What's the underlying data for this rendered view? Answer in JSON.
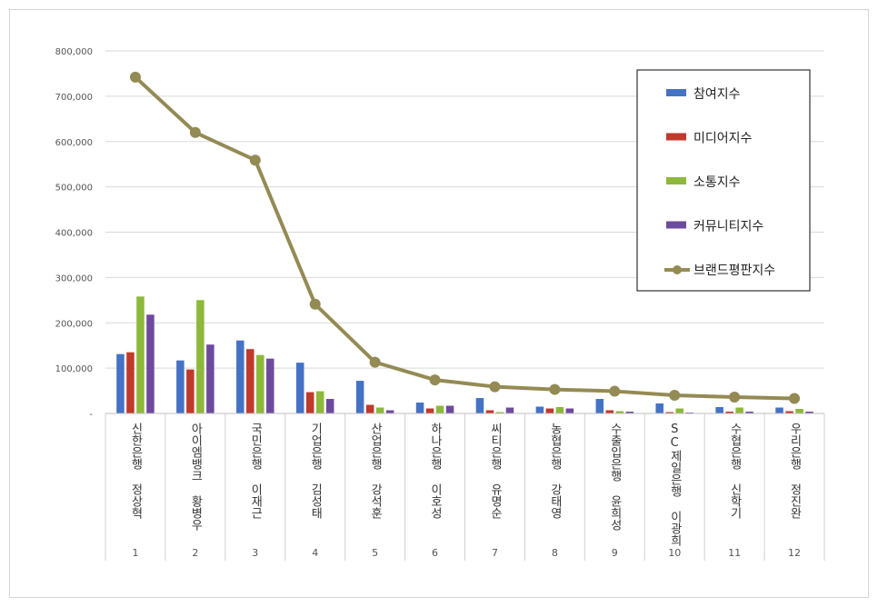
{
  "chart_data": {
    "type": "bar",
    "categories": [
      "1",
      "2",
      "3",
      "4",
      "5",
      "6",
      "7",
      "8",
      "9",
      "10",
      "11",
      "12"
    ],
    "category_labels": [
      "신한은행 정상혁",
      "아이엠뱅크 황병우",
      "국민은행 이재근",
      "기업은행 김성태",
      "산업은행 강석훈",
      "하나은행 이호성",
      "씨티은행 유명순",
      "농협은행 강태영",
      "수출입은행 윤희성",
      "SC제일은행 이광희",
      "수협은행 신학기",
      "우리은행 정진완"
    ],
    "ylim": [
      0,
      800000
    ],
    "yticks": [
      "-",
      "100,000",
      "200,000",
      "300,000",
      "400,000",
      "500,000",
      "600,000",
      "700,000",
      "800,000"
    ],
    "series": [
      {
        "name": "참여지수",
        "type": "bar",
        "color": "#4472C4",
        "values": [
          131000,
          117000,
          161000,
          112000,
          72000,
          24000,
          34000,
          15000,
          32000,
          22000,
          14000,
          13000
        ]
      },
      {
        "name": "미디어지수",
        "type": "bar",
        "color": "#C0392B",
        "values": [
          135000,
          97000,
          142000,
          47000,
          19000,
          11000,
          7000,
          11000,
          7000,
          3000,
          4000,
          5000
        ]
      },
      {
        "name": "소통지수",
        "type": "bar",
        "color": "#8DB83A",
        "values": [
          258000,
          250000,
          129000,
          49000,
          13000,
          17000,
          3000,
          14000,
          5000,
          11000,
          13000,
          10000
        ]
      },
      {
        "name": "커뮤니티지수",
        "type": "bar",
        "color": "#6E4A9E",
        "values": [
          218000,
          152000,
          121000,
          32000,
          7000,
          17000,
          13000,
          11000,
          4000,
          2000,
          4000,
          4000
        ]
      },
      {
        "name": "브랜드평판지수",
        "type": "line",
        "color": "#948A54",
        "values": [
          742000,
          620000,
          559000,
          241000,
          113000,
          74000,
          59000,
          53000,
          49000,
          40000,
          36000,
          33000
        ]
      }
    ],
    "legend": "top-right",
    "grid": true
  }
}
